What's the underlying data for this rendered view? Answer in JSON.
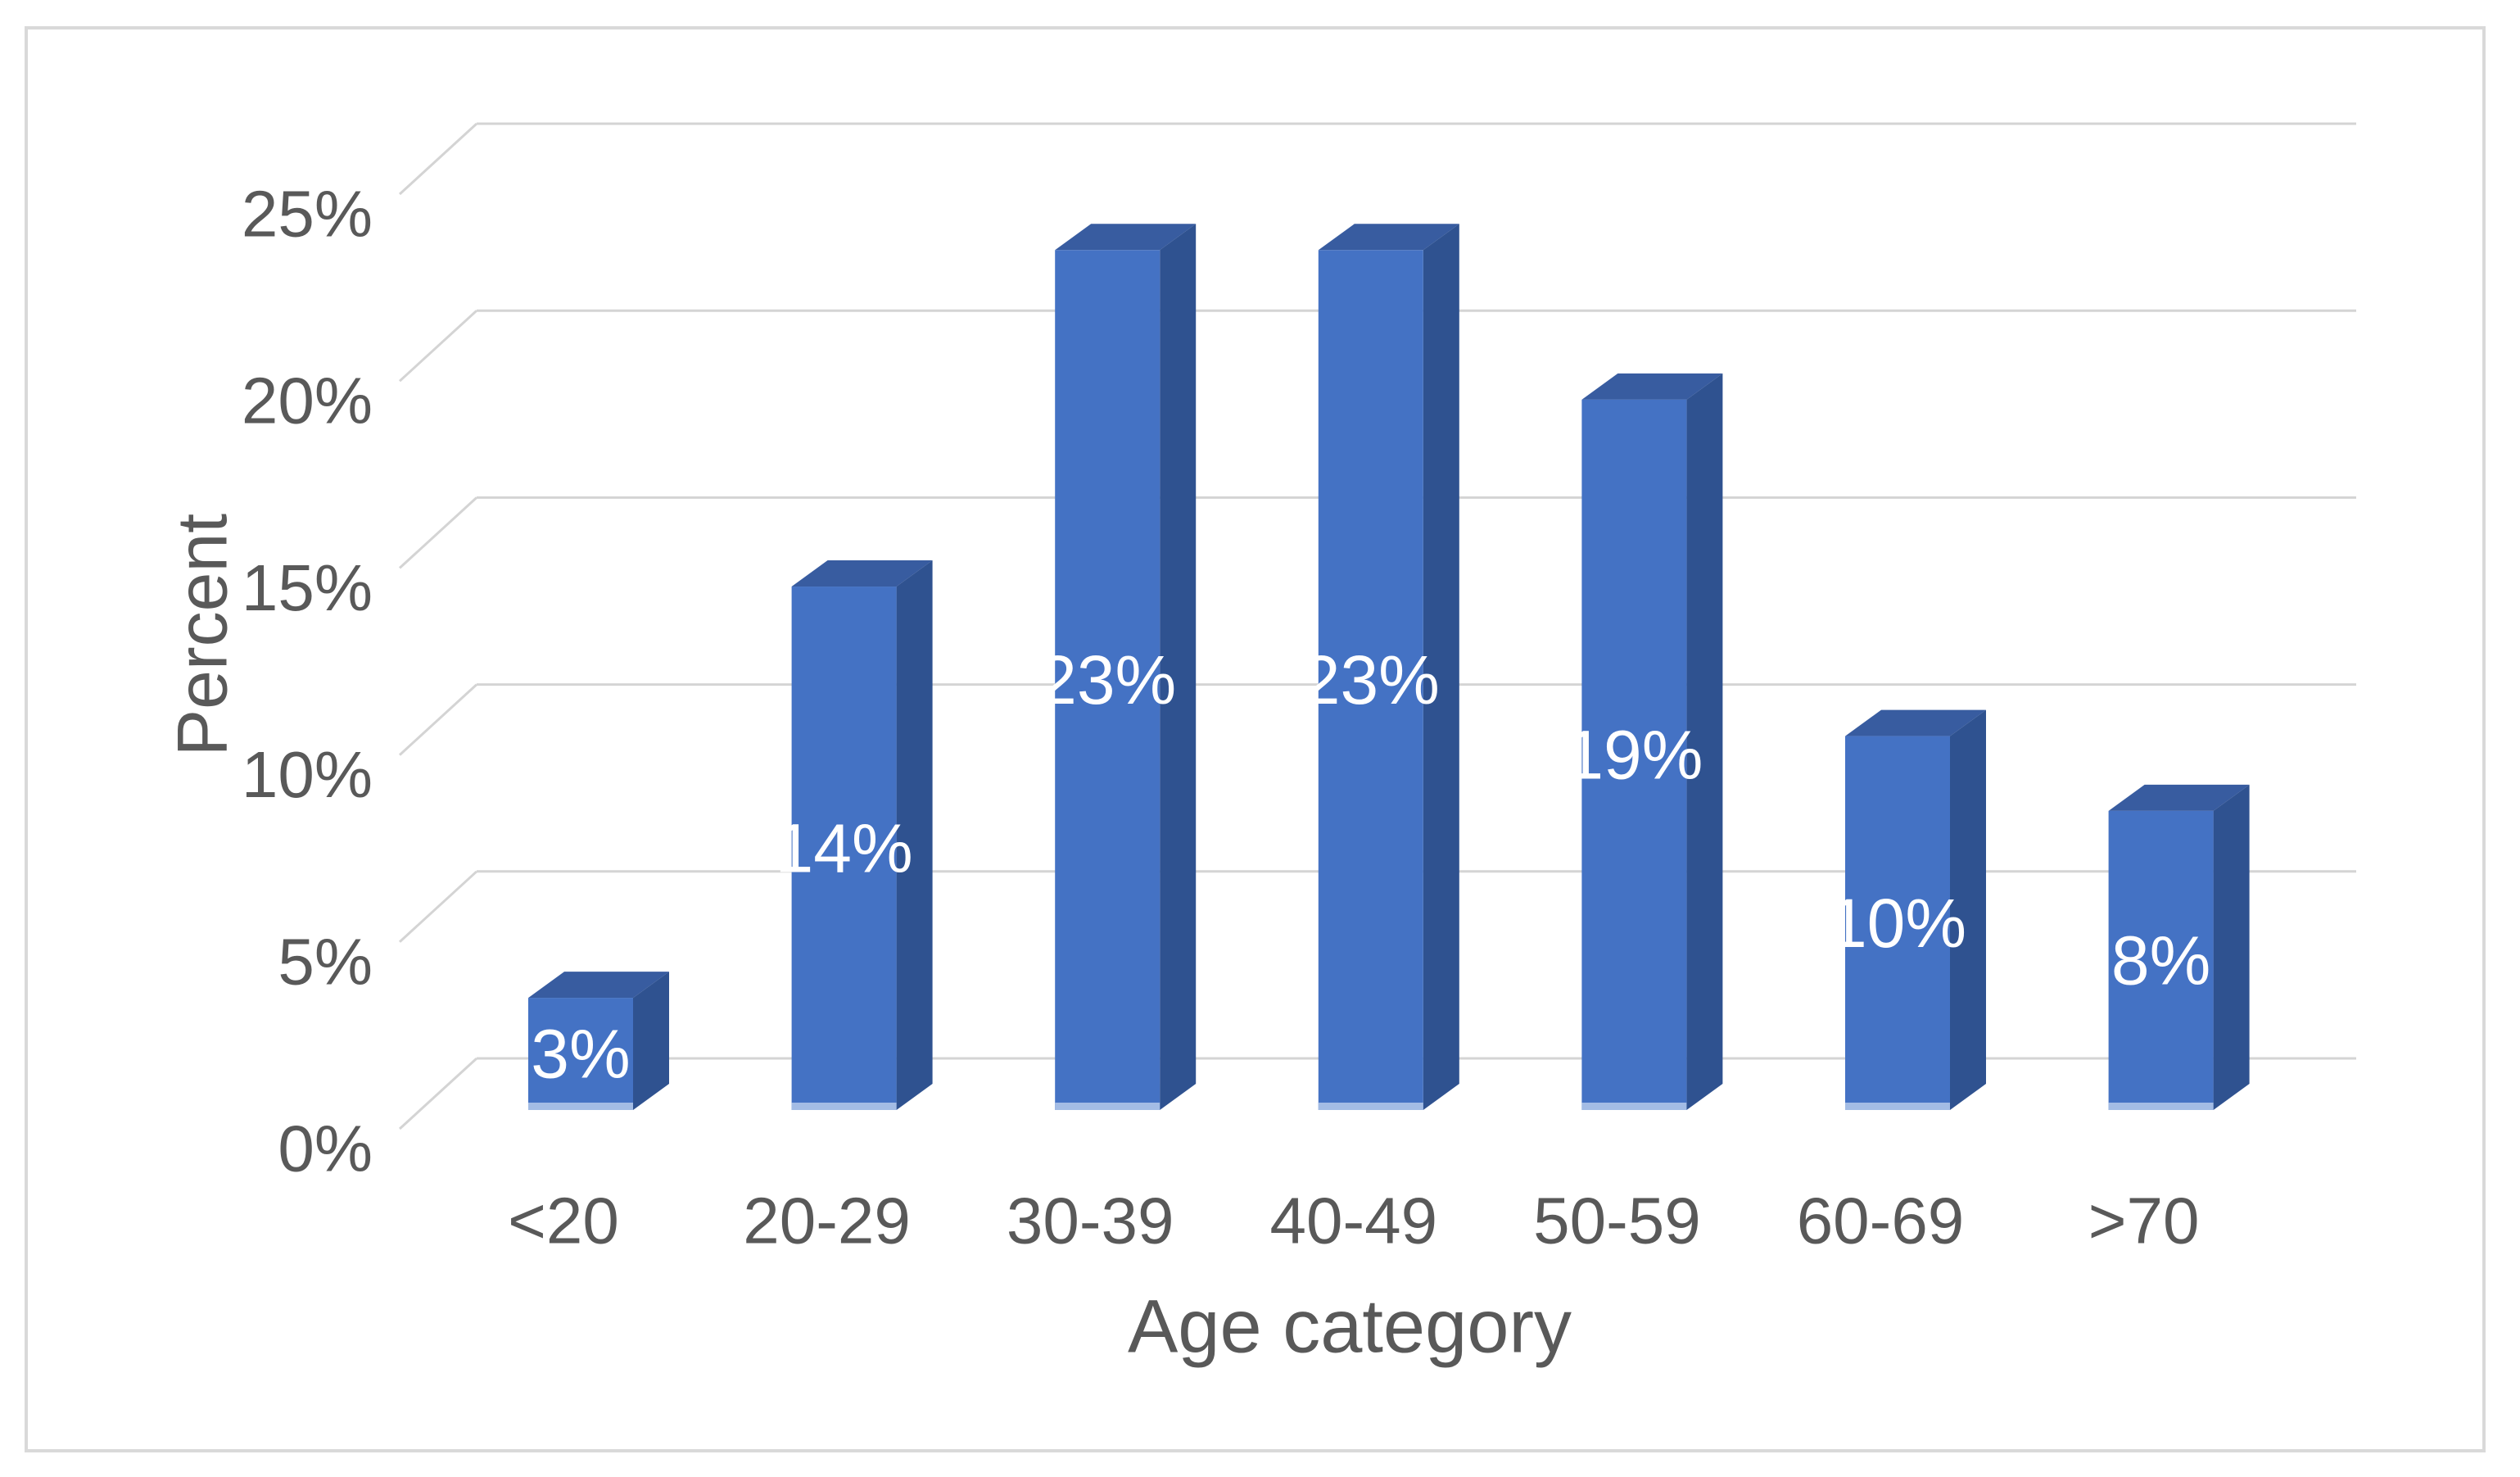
{
  "chart_data": {
    "type": "bar",
    "variant": "3d-column",
    "title": "",
    "xlabel": "Age category",
    "ylabel": "Percent",
    "categories": [
      "<20",
      "20-29",
      "30-39",
      "40-49",
      "50-59",
      "60-69",
      ">70"
    ],
    "values": [
      3,
      14,
      23,
      23,
      19,
      10,
      8
    ],
    "data_labels": [
      "3%",
      "14%",
      "23%",
      "23%",
      "19%",
      "10%",
      "8%"
    ],
    "data_label_position": "inside-center",
    "y_ticks": [
      "0%",
      "5%",
      "10%",
      "15%",
      "20%",
      "25%"
    ],
    "y_tick_values": [
      0,
      5,
      10,
      15,
      20,
      25
    ],
    "ylim": [
      0,
      25
    ],
    "grid": true,
    "legend": "none",
    "colors": {
      "bar_front": "#4472C4",
      "bar_side": "#2F5290",
      "bar_top": "#385CA0",
      "bar_base_strip": "#A3BCE5",
      "gridline": "#D4D4D4",
      "axis_text": "#595959",
      "data_label_text": "#FFFFFF",
      "chart_border": "#D9D9D9",
      "background": "#FFFFFF"
    }
  }
}
